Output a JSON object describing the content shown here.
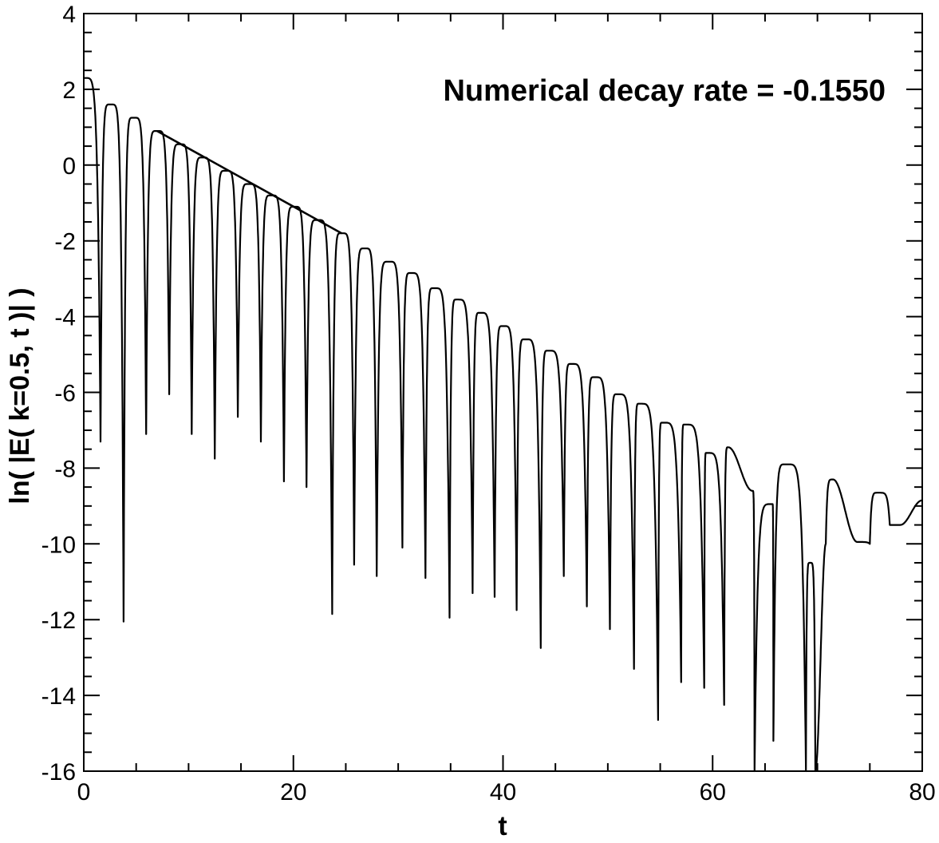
{
  "chart_data": {
    "type": "line",
    "title": "",
    "xlabel": "t",
    "ylabel": "ln( |E( k=0.5, t )| )",
    "xlim": [
      0,
      80
    ],
    "ylim": [
      -16,
      4
    ],
    "x_ticks": [
      0,
      20,
      40,
      60,
      80
    ],
    "y_ticks": [
      4,
      2,
      0,
      -2,
      -4,
      -6,
      -8,
      -10,
      -12,
      -14,
      -16
    ],
    "x_tick_labels": [
      "0",
      "20",
      "40",
      "60",
      "80"
    ],
    "y_tick_labels": [
      "4",
      "2",
      "0",
      "-2",
      "-4",
      "-6",
      "-8",
      "-10",
      "-12",
      "-14",
      "-16"
    ],
    "grid": false,
    "annotation": "Numerical decay rate = -0.1550",
    "series": [
      {
        "role": "signal",
        "color": "#000000",
        "maxima": [
          [
            0.0,
            2.3
          ],
          [
            2.55,
            1.6
          ],
          [
            4.75,
            1.25
          ],
          [
            7.0,
            0.9
          ],
          [
            9.2,
            0.55
          ],
          [
            11.35,
            0.2
          ],
          [
            13.55,
            -0.15
          ],
          [
            15.75,
            -0.5
          ],
          [
            17.9,
            -0.8
          ],
          [
            20.1,
            -1.1
          ],
          [
            22.3,
            -1.45
          ],
          [
            24.6,
            -1.8
          ],
          [
            26.8,
            -2.2
          ],
          [
            29.1,
            -2.55
          ],
          [
            31.2,
            -2.85
          ],
          [
            33.4,
            -3.25
          ],
          [
            35.6,
            -3.55
          ],
          [
            37.8,
            -3.9
          ],
          [
            40.0,
            -4.25
          ],
          [
            42.1,
            -4.6
          ],
          [
            44.3,
            -4.9
          ],
          [
            46.5,
            -5.25
          ],
          [
            48.7,
            -5.6
          ],
          [
            50.9,
            -6.05
          ],
          [
            53.0,
            -6.3
          ],
          [
            55.2,
            -6.8
          ],
          [
            57.3,
            -6.85
          ],
          [
            59.4,
            -7.6
          ],
          [
            61.5,
            -7.45
          ],
          [
            63.8,
            -8.6
          ],
          [
            65.7,
            -8.95
          ],
          [
            67.0,
            -7.9
          ],
          [
            69.3,
            -10.5
          ],
          [
            71.5,
            -8.3
          ],
          [
            73.8,
            -9.95
          ],
          [
            75.8,
            -8.65
          ],
          [
            77.9,
            -9.5
          ],
          [
            80.0,
            -8.85
          ]
        ],
        "minima": [
          [
            1.6,
            -7.3
          ],
          [
            3.8,
            -12.05
          ],
          [
            5.95,
            -7.1
          ],
          [
            8.15,
            -6.05
          ],
          [
            10.3,
            -7.1
          ],
          [
            12.5,
            -7.75
          ],
          [
            14.7,
            -6.65
          ],
          [
            16.9,
            -7.3
          ],
          [
            19.1,
            -8.35
          ],
          [
            21.25,
            -8.5
          ],
          [
            23.7,
            -11.85
          ],
          [
            25.8,
            -10.55
          ],
          [
            27.95,
            -10.85
          ],
          [
            30.4,
            -10.1
          ],
          [
            32.6,
            -10.9
          ],
          [
            34.9,
            -11.95
          ],
          [
            37.1,
            -11.3
          ],
          [
            39.2,
            -11.4
          ],
          [
            41.3,
            -11.75
          ],
          [
            43.6,
            -12.75
          ],
          [
            45.8,
            -10.85
          ],
          [
            48.0,
            -11.65
          ],
          [
            50.2,
            -12.25
          ],
          [
            52.5,
            -13.3
          ],
          [
            54.8,
            -14.65
          ],
          [
            57.0,
            -13.65
          ],
          [
            59.2,
            -13.8
          ],
          [
            61.1,
            -14.25
          ],
          [
            64.0,
            -16.0
          ],
          [
            65.8,
            -15.2
          ],
          [
            68.9,
            -16.0
          ],
          [
            69.8,
            -16.0
          ],
          [
            70.8,
            -10.0
          ],
          [
            75.0,
            -10.0
          ],
          [
            76.9,
            -9.5
          ]
        ]
      },
      {
        "role": "fit-line",
        "color": "#000000",
        "points": [
          [
            7.0,
            0.9
          ],
          [
            24.6,
            -1.8
          ]
        ]
      }
    ]
  }
}
